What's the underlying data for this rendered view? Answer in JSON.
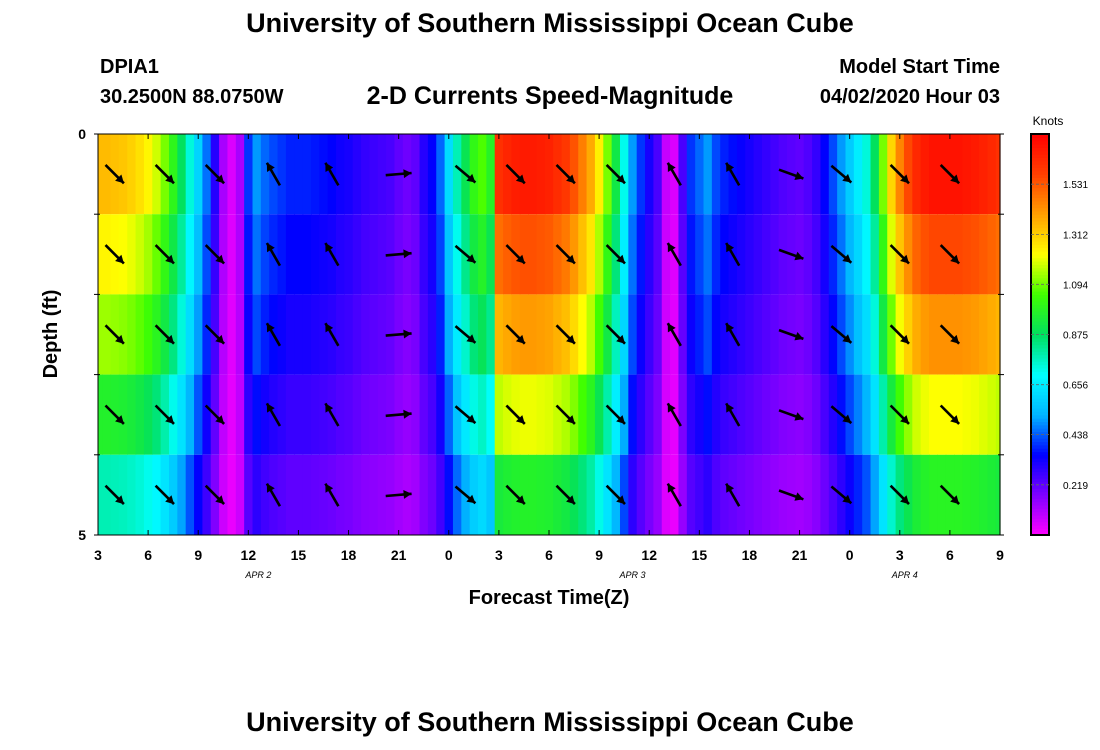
{
  "header": {
    "title_top": "University of Southern Mississippi Ocean Cube",
    "title_bottom": "University of Southern Mississippi Ocean Cube",
    "station": "DPIA1",
    "coords": "30.2500N 88.0750W",
    "subtitle": "2-D Currents Speed-Magnitude",
    "model_start_label": "Model Start Time",
    "model_start_value": "04/02/2020 Hour 03"
  },
  "chart_data": {
    "type": "heatmap",
    "title": "2-D Currents Speed-Magnitude",
    "xlabel": "Forecast Time(Z)",
    "ylabel": "Depth (ft)",
    "x_tick_labels": [
      "3",
      "6",
      "9",
      "12",
      "15",
      "18",
      "21",
      "0",
      "3",
      "6",
      "9",
      "12",
      "15",
      "18",
      "21",
      "0",
      "3",
      "6",
      "9"
    ],
    "x_hours_since_start": [
      0,
      3,
      6,
      9,
      12,
      15,
      18,
      21,
      24,
      27,
      30,
      33,
      36,
      39,
      42,
      45,
      48,
      51,
      54
    ],
    "date_labels": [
      {
        "label": "APR 2",
        "hour": 9.6
      },
      {
        "label": "APR 3",
        "hour": 32.0
      },
      {
        "label": "APR 4",
        "hour": 48.3
      }
    ],
    "y_tick_labels": [
      "0",
      "",
      "",
      "",
      "",
      "5"
    ],
    "ylim": [
      0,
      5
    ],
    "y_inverted": true,
    "depth_layers_ft": [
      0.5,
      1.5,
      2.5,
      3.5,
      4.5
    ],
    "time_hours": [
      0,
      0.5,
      1,
      1.5,
      2,
      2.5,
      3,
      3.5,
      4,
      4.5,
      5,
      5.5,
      6,
      6.5,
      7,
      7.5,
      8,
      8.5,
      9,
      9.5,
      10,
      10.5,
      11,
      11.5,
      12,
      12.5,
      13,
      13.5,
      14,
      14.5,
      15,
      15.5,
      16,
      16.5,
      17,
      17.5,
      18,
      18.5,
      19,
      19.5,
      20,
      20.5,
      21,
      21.5,
      22,
      22.5,
      23,
      23.5,
      24,
      24.5,
      25,
      25.5,
      26,
      26.5,
      27,
      27.5,
      28,
      28.5,
      29,
      29.5,
      30,
      30.5,
      31,
      31.5,
      32,
      32.5,
      33,
      33.5,
      34,
      34.5,
      35,
      35.5,
      36,
      36.5,
      37,
      37.5,
      38,
      38.5,
      39,
      39.5,
      40,
      40.5,
      41,
      41.5,
      42,
      42.5,
      43,
      43.5,
      44,
      44.5,
      45,
      45.5,
      46,
      46.5,
      47,
      47.5,
      48,
      48.5,
      49,
      49.5,
      50,
      50.5,
      51,
      51.5,
      52,
      52.5,
      53,
      53.5,
      54
    ],
    "speed_envelope_knots": [
      1.35,
      1.35,
      1.34,
      1.33,
      1.31,
      1.28,
      1.24,
      1.18,
      1.1,
      1.0,
      0.88,
      0.74,
      0.6,
      0.46,
      0.3,
      0.12,
      0.05,
      0.12,
      0.4,
      0.5,
      0.45,
      0.42,
      0.4,
      0.38,
      0.38,
      0.38,
      0.37,
      0.36,
      0.35,
      0.33,
      0.32,
      0.3,
      0.28,
      0.27,
      0.26,
      0.25,
      0.22,
      0.2,
      0.22,
      0.3,
      0.35,
      0.45,
      0.62,
      0.78,
      0.9,
      1.01,
      1.06,
      0.98,
      1.62,
      1.65,
      1.67,
      1.68,
      1.68,
      1.67,
      1.66,
      1.63,
      1.6,
      1.54,
      1.46,
      1.38,
      1.25,
      1.1,
      0.92,
      0.72,
      0.5,
      0.4,
      0.32,
      0.25,
      0.08,
      0.05,
      0.25,
      0.4,
      0.45,
      0.5,
      0.42,
      0.38,
      0.36,
      0.34,
      0.32,
      0.3,
      0.28,
      0.26,
      0.24,
      0.23,
      0.22,
      0.24,
      0.28,
      0.35,
      0.42,
      0.5,
      0.58,
      0.66,
      0.74,
      0.88,
      1.1,
      1.3,
      1.45,
      1.56,
      1.64,
      1.68,
      1.7,
      1.7,
      1.7,
      1.7,
      1.69,
      1.68,
      1.66,
      1.64,
      1.62
    ],
    "layer_factor": [
      1.0,
      0.92,
      0.84,
      0.72,
      0.58
    ],
    "arrow_times_hours": [
      1,
      4,
      7,
      10.5,
      14,
      18,
      22,
      25,
      28,
      31,
      34.5,
      38,
      41.5,
      44.5,
      48,
      51
    ],
    "arrow_direction_deg_from_north": [
      135,
      135,
      135,
      330,
      330,
      85,
      130,
      135,
      135,
      135,
      330,
      330,
      110,
      130,
      135,
      135
    ],
    "colorbar": {
      "label": "Knots",
      "tick_values": [
        0.219,
        0.438,
        0.656,
        0.875,
        1.094,
        1.312,
        1.531
      ],
      "tick_labels": [
        "0.219",
        "0.438",
        "0.656",
        "0.875",
        "1.094",
        "1.312",
        "1.531"
      ],
      "range": [
        0,
        1.75
      ]
    },
    "colormap": [
      "#ff00ff",
      "#8000ff",
      "#0000ff",
      "#00b4ff",
      "#00ffff",
      "#00e060",
      "#40ff00",
      "#ffff00",
      "#ffa000",
      "#ff4000",
      "#ff0000"
    ],
    "grid": false,
    "legend": "colorbar-right"
  }
}
